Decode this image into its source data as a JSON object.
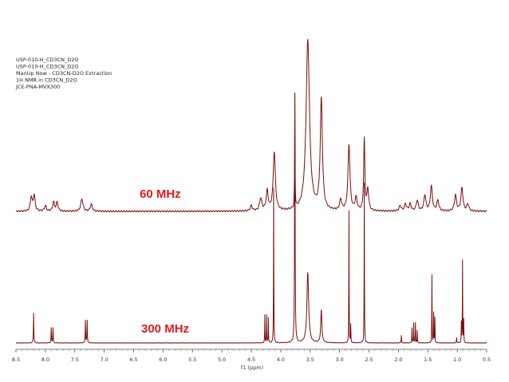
{
  "header_lines": [
    "USP-010-H_CD3CN_D2O",
    "USP-010-H_CD3CN_D2O",
    "ManUp Now - CD3CN-D2O Extraction",
    "1H NMR in CD3CN_D2O",
    "JCE-PNA-MVX300"
  ],
  "colors": {
    "trace": "#7a0c0c",
    "label": "#e31b1b",
    "axis": "#555555"
  },
  "chart_data": {
    "type": "line",
    "xlabel": "f1 (ppm)",
    "xlim": [
      8.5,
      0.5
    ],
    "x_reversed": true,
    "xticks": [
      8.5,
      8.0,
      7.5,
      7.0,
      6.5,
      6.0,
      5.5,
      5.0,
      4.5,
      4.0,
      3.5,
      3.0,
      2.5,
      2.0,
      1.5,
      1.0,
      0.5
    ],
    "xtick_labels": [
      "8.5",
      "8.0",
      "7.5",
      "7.0",
      "6.5",
      "6.0",
      "5.5",
      "5.0",
      "4.5",
      "4.0",
      "3.5",
      "3.0",
      "2.5",
      "2.0",
      "1.5",
      "1.0",
      "0.5"
    ],
    "ylabel": "",
    "y_ticks_shown": false,
    "series": [
      {
        "name": "60 MHz",
        "label": "60 MHz",
        "peaks": [
          {
            "ppm": 8.24,
            "h": 0.08,
            "w": 0.018
          },
          {
            "ppm": 8.19,
            "h": 0.09,
            "w": 0.018
          },
          {
            "ppm": 8.0,
            "h": 0.03,
            "w": 0.02
          },
          {
            "ppm": 7.86,
            "h": 0.05,
            "w": 0.018
          },
          {
            "ppm": 7.8,
            "h": 0.05,
            "w": 0.018
          },
          {
            "ppm": 7.38,
            "h": 0.07,
            "w": 0.022
          },
          {
            "ppm": 7.22,
            "h": 0.04,
            "w": 0.02
          },
          {
            "ppm": 4.5,
            "h": 0.03,
            "w": 0.02
          },
          {
            "ppm": 4.34,
            "h": 0.07,
            "w": 0.022
          },
          {
            "ppm": 4.23,
            "h": 0.11,
            "w": 0.02
          },
          {
            "ppm": 4.11,
            "h": 0.33,
            "w": 0.022
          },
          {
            "ppm": 3.76,
            "h": 0.63,
            "w": 0.004
          },
          {
            "ppm": 3.54,
            "h": 0.96,
            "w": 0.035
          },
          {
            "ppm": 3.31,
            "h": 0.62,
            "w": 0.022
          },
          {
            "ppm": 2.98,
            "h": 0.06,
            "w": 0.02
          },
          {
            "ppm": 2.84,
            "h": 0.37,
            "w": 0.02
          },
          {
            "ppm": 2.72,
            "h": 0.07,
            "w": 0.02
          },
          {
            "ppm": 2.58,
            "h": 0.4,
            "w": 0.012
          },
          {
            "ppm": 2.52,
            "h": 0.12,
            "w": 0.018
          },
          {
            "ppm": 1.97,
            "h": 0.03,
            "w": 0.02
          },
          {
            "ppm": 1.88,
            "h": 0.04,
            "w": 0.02
          },
          {
            "ppm": 1.8,
            "h": 0.04,
            "w": 0.02
          },
          {
            "ppm": 1.68,
            "h": 0.06,
            "w": 0.02
          },
          {
            "ppm": 1.55,
            "h": 0.09,
            "w": 0.02
          },
          {
            "ppm": 1.44,
            "h": 0.14,
            "w": 0.02
          },
          {
            "ppm": 1.33,
            "h": 0.06,
            "w": 0.02
          },
          {
            "ppm": 1.03,
            "h": 0.09,
            "w": 0.02
          },
          {
            "ppm": 0.92,
            "h": 0.13,
            "w": 0.02
          },
          {
            "ppm": 0.82,
            "h": 0.04,
            "w": 0.02
          }
        ]
      },
      {
        "name": "300 MHz",
        "label": "300 MHz",
        "peaks": [
          {
            "ppm": 8.2,
            "h": 0.12,
            "w": 0.004
          },
          {
            "ppm": 7.9,
            "h": 0.06,
            "w": 0.004
          },
          {
            "ppm": 7.87,
            "h": 0.06,
            "w": 0.004
          },
          {
            "ppm": 7.32,
            "h": 0.09,
            "w": 0.004
          },
          {
            "ppm": 7.29,
            "h": 0.09,
            "w": 0.004
          },
          {
            "ppm": 4.27,
            "h": 0.11,
            "w": 0.003
          },
          {
            "ppm": 4.24,
            "h": 0.11,
            "w": 0.003
          },
          {
            "ppm": 4.21,
            "h": 0.1,
            "w": 0.003
          },
          {
            "ppm": 4.12,
            "h": 0.62,
            "w": 0.003
          },
          {
            "ppm": 3.76,
            "h": 1.0,
            "w": 0.005
          },
          {
            "ppm": 3.54,
            "h": 0.28,
            "w": 0.018
          },
          {
            "ppm": 3.31,
            "h": 0.13,
            "w": 0.012
          },
          {
            "ppm": 2.84,
            "h": 0.53,
            "w": 0.003
          },
          {
            "ppm": 2.81,
            "h": 0.07,
            "w": 0.003
          },
          {
            "ppm": 2.58,
            "h": 0.64,
            "w": 0.003
          },
          {
            "ppm": 1.95,
            "h": 0.03,
            "w": 0.004
          },
          {
            "ppm": 1.77,
            "h": 0.06,
            "w": 0.003
          },
          {
            "ppm": 1.74,
            "h": 0.08,
            "w": 0.003
          },
          {
            "ppm": 1.71,
            "h": 0.08,
            "w": 0.003
          },
          {
            "ppm": 1.68,
            "h": 0.05,
            "w": 0.003
          },
          {
            "ppm": 1.43,
            "h": 0.27,
            "w": 0.003
          },
          {
            "ppm": 1.4,
            "h": 0.12,
            "w": 0.003
          },
          {
            "ppm": 1.38,
            "h": 0.1,
            "w": 0.003
          },
          {
            "ppm": 1.01,
            "h": 0.02,
            "w": 0.004
          },
          {
            "ppm": 0.93,
            "h": 0.08,
            "w": 0.003
          },
          {
            "ppm": 0.91,
            "h": 0.33,
            "w": 0.003
          },
          {
            "ppm": 0.89,
            "h": 0.09,
            "w": 0.003
          }
        ]
      }
    ]
  }
}
